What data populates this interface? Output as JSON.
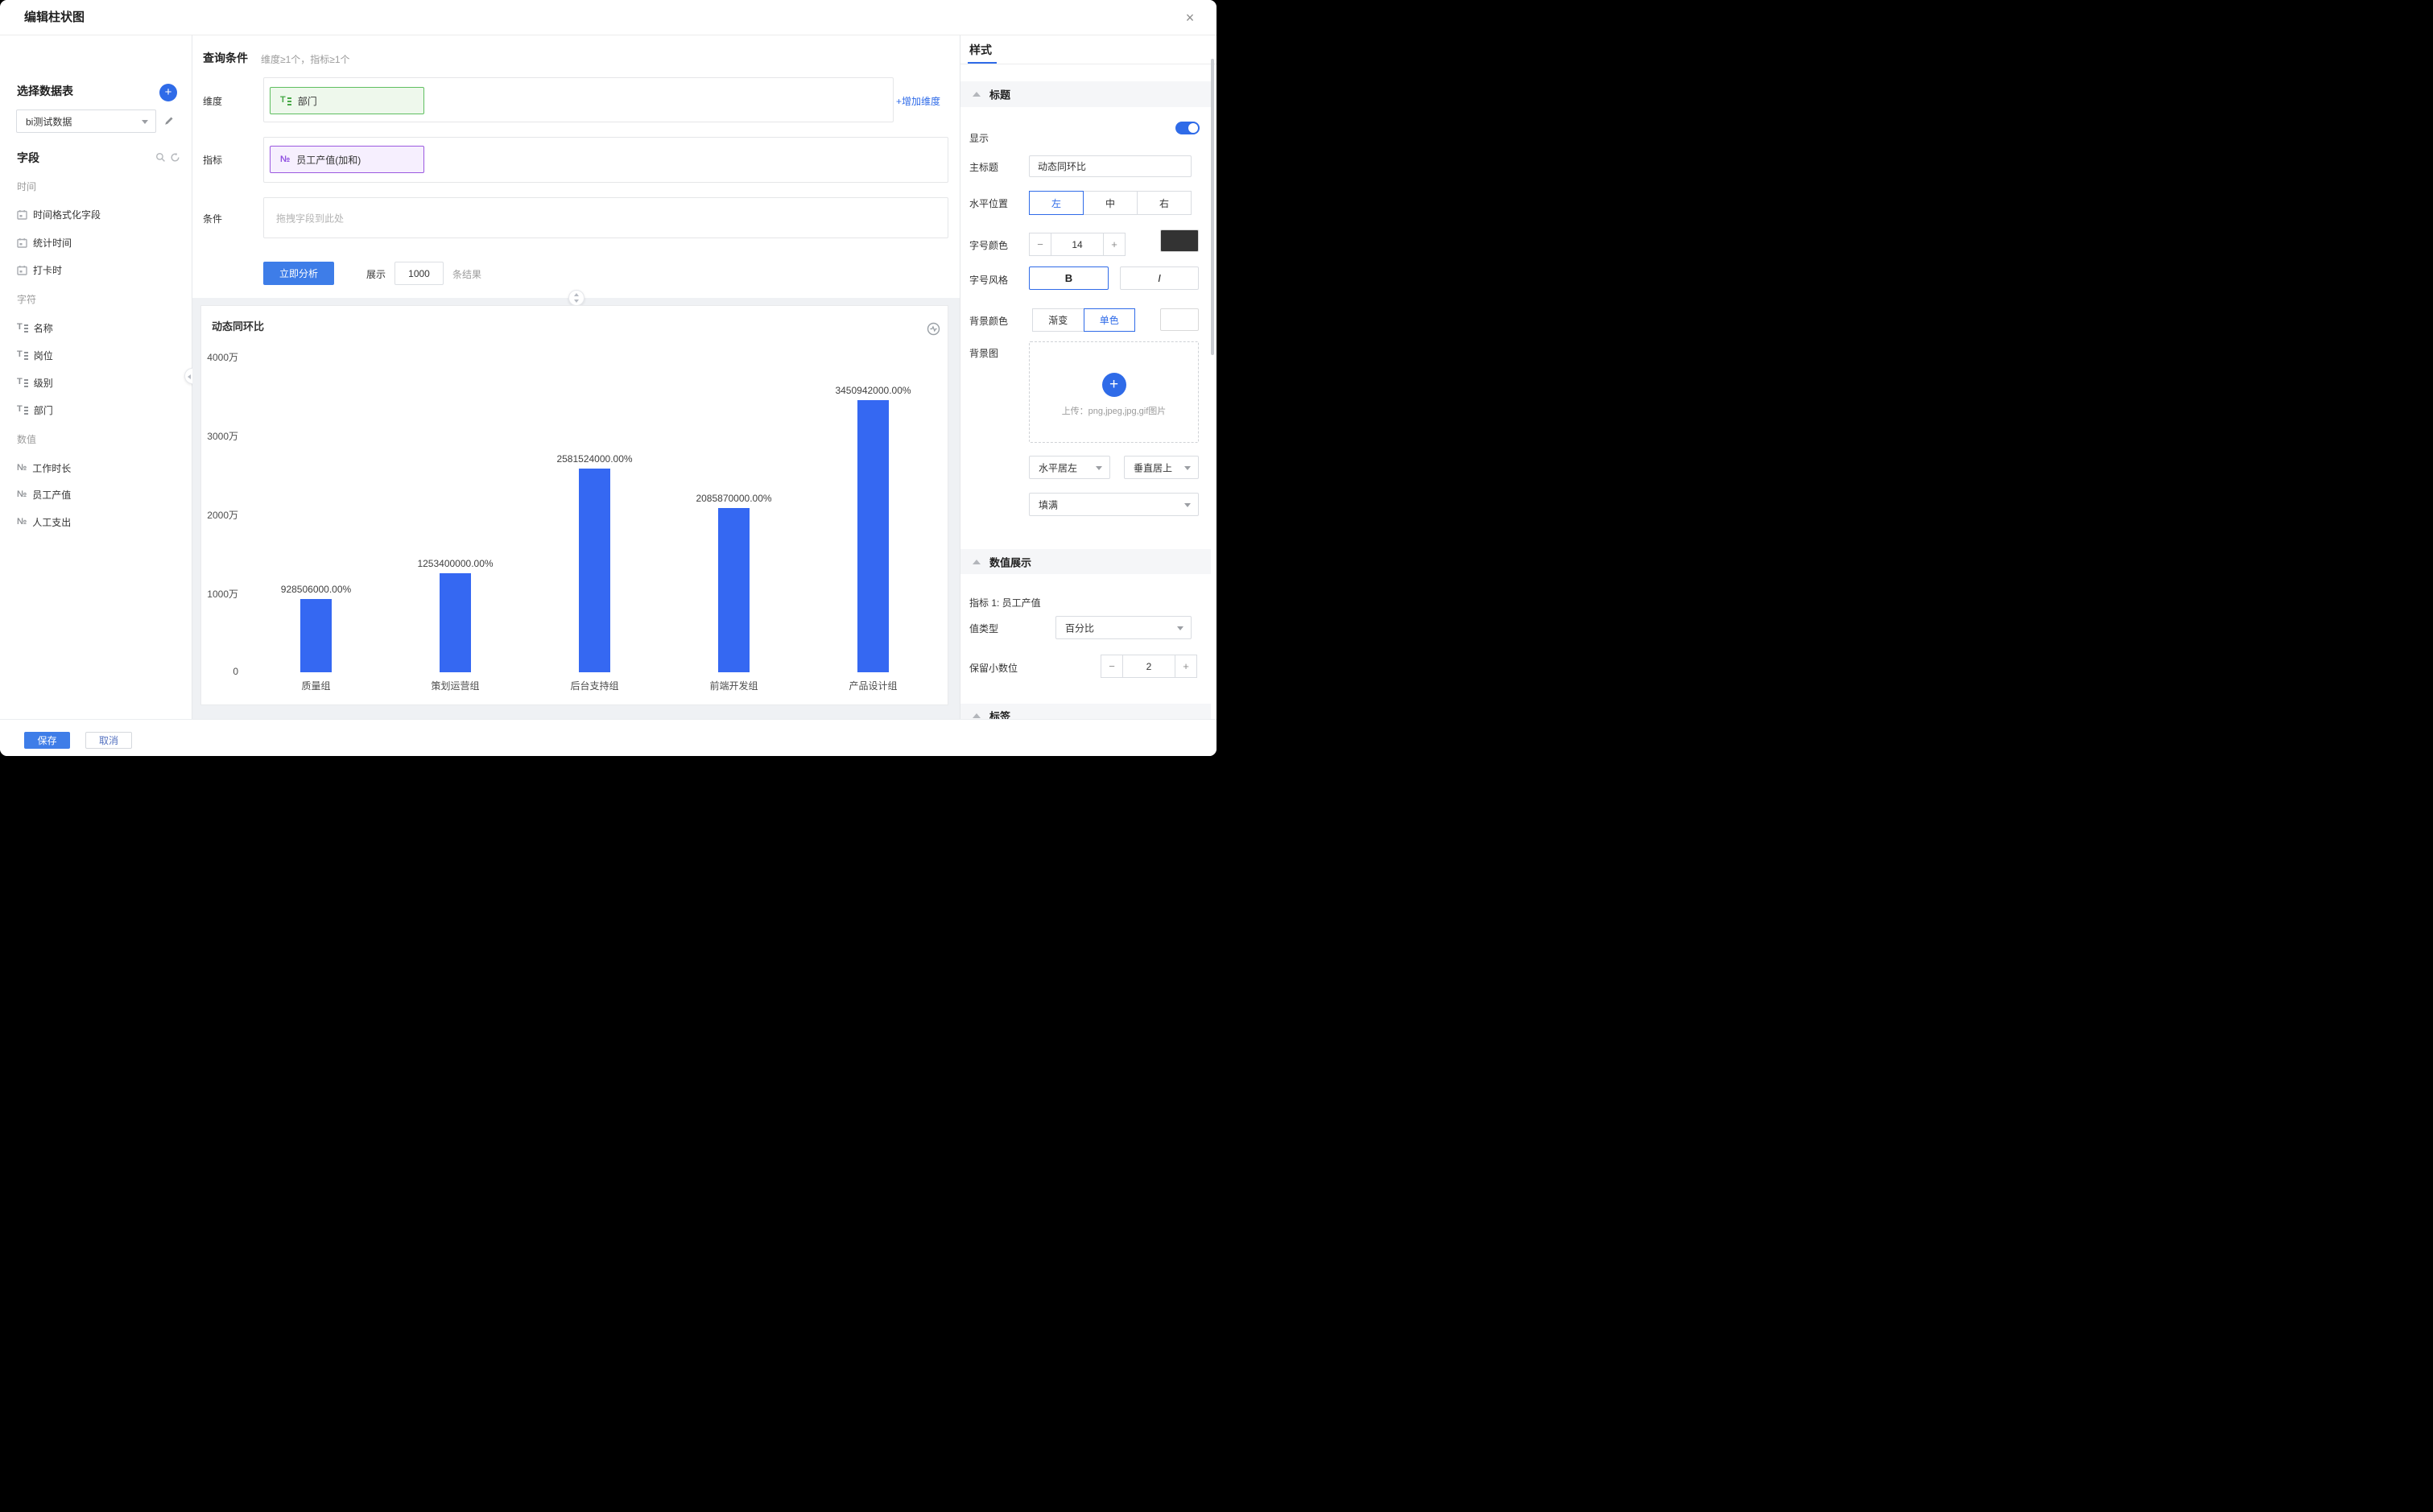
{
  "dialog": {
    "title": "编辑柱状图"
  },
  "colors": {
    "accent": "#2f6be8",
    "bar": "#3568f2",
    "dim_chip_border": "#5fbf60",
    "dim_chip_bg": "#eef8ec",
    "metric_chip_border": "#9b59e0",
    "metric_chip_bg": "#f6effe",
    "font_color_swatch": "#333333",
    "bg_color_swatch": "#ffffff"
  },
  "sidebar": {
    "dataset_label": "选择数据表",
    "dataset_value": "bi测试数据",
    "fields_label": "字段",
    "groups": [
      {
        "label": "时间",
        "items": [
          "时间格式化字段",
          "统计时间",
          "打卡时"
        ]
      },
      {
        "label": "字符",
        "items": [
          "名称",
          "岗位",
          "级别",
          "部门"
        ]
      },
      {
        "label": "数值",
        "items": [
          "工作时长",
          "员工产值",
          "人工支出"
        ]
      }
    ]
  },
  "query": {
    "title": "查询条件",
    "subtitle": "维度≥1个，指标≥1个",
    "dimension_label": "维度",
    "dimension_chip": "部门",
    "add_dimension": "增加维度",
    "metric_label": "指标",
    "metric_chip": "员工产值(加和)",
    "condition_label": "条件",
    "condition_placeholder": "拖拽字段到此处",
    "analyze_button": "立即分析",
    "show_label": "展示",
    "show_count": "1000",
    "show_suffix": "条结果"
  },
  "chart_data": {
    "type": "bar",
    "title": "动态同环比",
    "categories": [
      "质量组",
      "策划运营组",
      "后台支持组",
      "前端开发组",
      "产品设计组"
    ],
    "values": [
      9285060,
      12534000,
      25815240,
      20858700,
      34509420
    ],
    "value_labels": [
      "928506000.00%",
      "1253400000.00%",
      "2581524000.00%",
      "2085870000.00%",
      "3450942000.00%"
    ],
    "ytick_labels": [
      "4000万",
      "3000万",
      "2000万",
      "1000万",
      "0"
    ],
    "ylim": [
      0,
      40000000
    ],
    "xlabel": "",
    "ylabel": "",
    "grid": false,
    "legend": false,
    "bar_color": "#3568f2"
  },
  "panel": {
    "tab_label": "样式",
    "title_section": {
      "header": "标题",
      "show_label": "显示",
      "main_title_label": "主标题",
      "main_title_value": "动态同环比",
      "align_label": "水平位置",
      "align_options": [
        "左",
        "中",
        "右"
      ],
      "font_label": "字号颜色",
      "font_size": "14",
      "style_label": "字号风格",
      "bold_label": "B",
      "italic_label": "I",
      "bg_label": "背景颜色",
      "bg_options": [
        "渐变",
        "单色"
      ],
      "bgimg_label": "背景图",
      "upload_text": "上传：png,jpeg,jpg,gif图片",
      "h_align_select": "水平居左",
      "v_align_select": "垂直居上",
      "fill_select": "填满"
    },
    "value_section": {
      "header": "数值展示",
      "metric_line": "指标 1: 员工产值",
      "value_type_label": "值类型",
      "value_type": "百分比",
      "decimals_label": "保留小数位",
      "decimals": "2"
    },
    "label_section": {
      "header": "标签"
    }
  },
  "footer": {
    "save": "保存",
    "cancel": "取消"
  },
  "icons": {
    "plus": "+",
    "minus": "−",
    "close": "×"
  }
}
